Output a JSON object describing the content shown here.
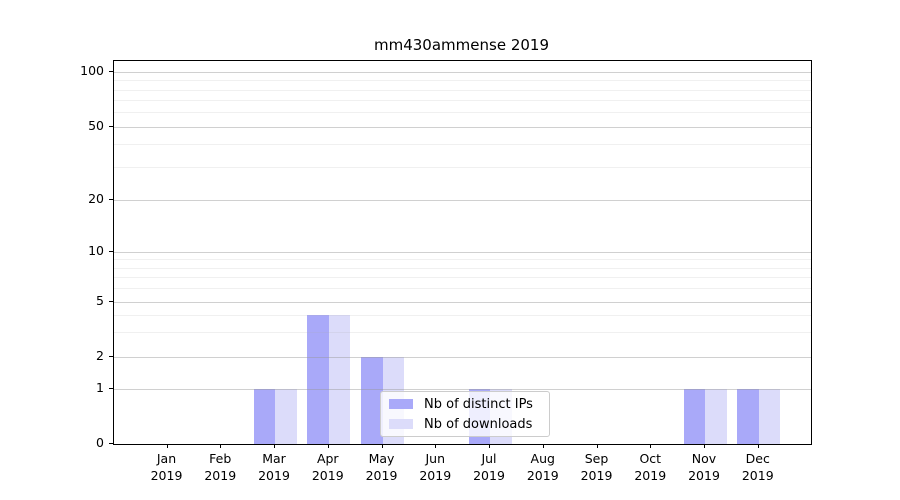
{
  "title": "mm430ammense 2019",
  "legend": {
    "items": [
      {
        "label": "Nb of distinct IPs",
        "color": "#a9a9f9"
      },
      {
        "label": "Nb of downloads",
        "color": "#dcdcfa"
      }
    ]
  },
  "chart_data": {
    "type": "bar",
    "title": "mm430ammense 2019",
    "categories": [
      "Jan 2019",
      "Feb 2019",
      "Mar 2019",
      "Apr 2019",
      "May 2019",
      "Jun 2019",
      "Jul 2019",
      "Aug 2019",
      "Sep 2019",
      "Oct 2019",
      "Nov 2019",
      "Dec 2019"
    ],
    "x_tick_months": [
      "Jan",
      "Feb",
      "Mar",
      "Apr",
      "May",
      "Jun",
      "Jul",
      "Aug",
      "Sep",
      "Oct",
      "Nov",
      "Dec"
    ],
    "x_tick_year": "2019",
    "series": [
      {
        "name": "Nb of distinct IPs",
        "color": "#a9a9f9",
        "values": [
          0,
          0,
          1,
          4,
          2,
          0,
          1,
          0,
          0,
          0,
          1,
          1
        ]
      },
      {
        "name": "Nb of downloads",
        "color": "#dcdcfa",
        "values": [
          0,
          0,
          1,
          4,
          2,
          0,
          1,
          0,
          0,
          0,
          1,
          1
        ]
      }
    ],
    "y_axis": {
      "scale": "log-like with linear segment to 0",
      "major_ticks": [
        0,
        1,
        2,
        5,
        10,
        20,
        50,
        100
      ],
      "minor_ticks": [
        3,
        4,
        6,
        7,
        8,
        9,
        30,
        40,
        60,
        70,
        80,
        90
      ],
      "range": [
        0,
        110
      ]
    },
    "xlabel": "",
    "ylabel": "",
    "grid": true,
    "legend_position": "inside, lower middle (over Jul bars)"
  }
}
